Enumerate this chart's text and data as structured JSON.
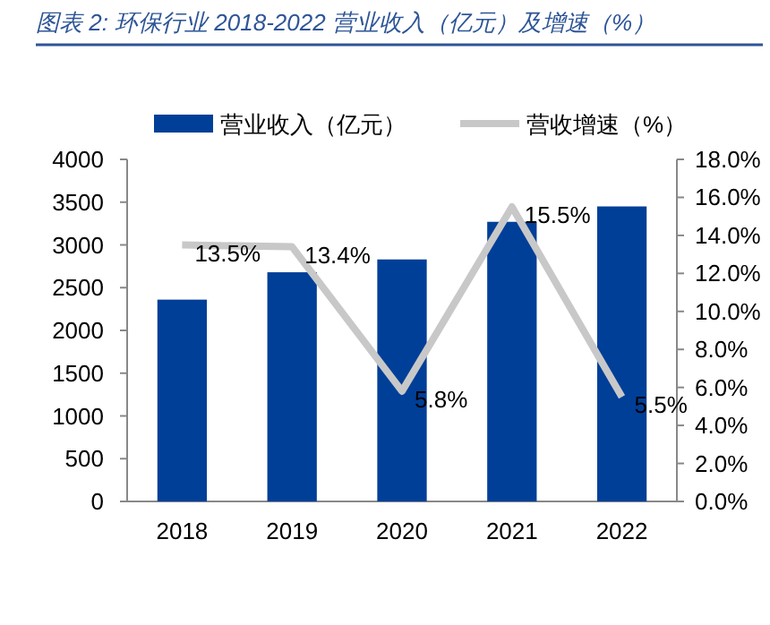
{
  "chart_data": {
    "type": "bar",
    "title": "图表 2: 环保行业 2018-2022 营业收入（亿元）及增速（%）",
    "categories": [
      "2018",
      "2019",
      "2020",
      "2021",
      "2022"
    ],
    "series": [
      {
        "name": "营业收入（亿元）",
        "color": "#003f98",
        "values": [
          2360,
          2680,
          2830,
          3270,
          3450
        ]
      },
      {
        "name": "营收增速（%）",
        "type": "line",
        "axis": "y2",
        "color": "#c8c8c8",
        "values": [
          13.5,
          13.4,
          5.8,
          15.5,
          5.5
        ],
        "value_labels": [
          "13.5%",
          "13.4%",
          "5.8%",
          "15.5%",
          "5.5%"
        ]
      }
    ],
    "ylim": [
      0,
      4000
    ],
    "yticks": [
      0,
      500,
      1000,
      1500,
      2000,
      2500,
      3000,
      3500,
      4000
    ],
    "y2lim": [
      0,
      18
    ],
    "y2ticks": [
      {
        "value": 0,
        "label": "0.0%"
      },
      {
        "value": 2,
        "label": "2.0%"
      },
      {
        "value": 4,
        "label": "4.0%"
      },
      {
        "value": 6,
        "label": "6.0%"
      },
      {
        "value": 8,
        "label": "8.0%"
      },
      {
        "value": 10,
        "label": "10.0%"
      },
      {
        "value": 12,
        "label": "12.0%"
      },
      {
        "value": 14,
        "label": "14.0%"
      },
      {
        "value": 16,
        "label": "16.0%"
      },
      {
        "value": 18,
        "label": "18.0%"
      }
    ],
    "legend": "top"
  }
}
